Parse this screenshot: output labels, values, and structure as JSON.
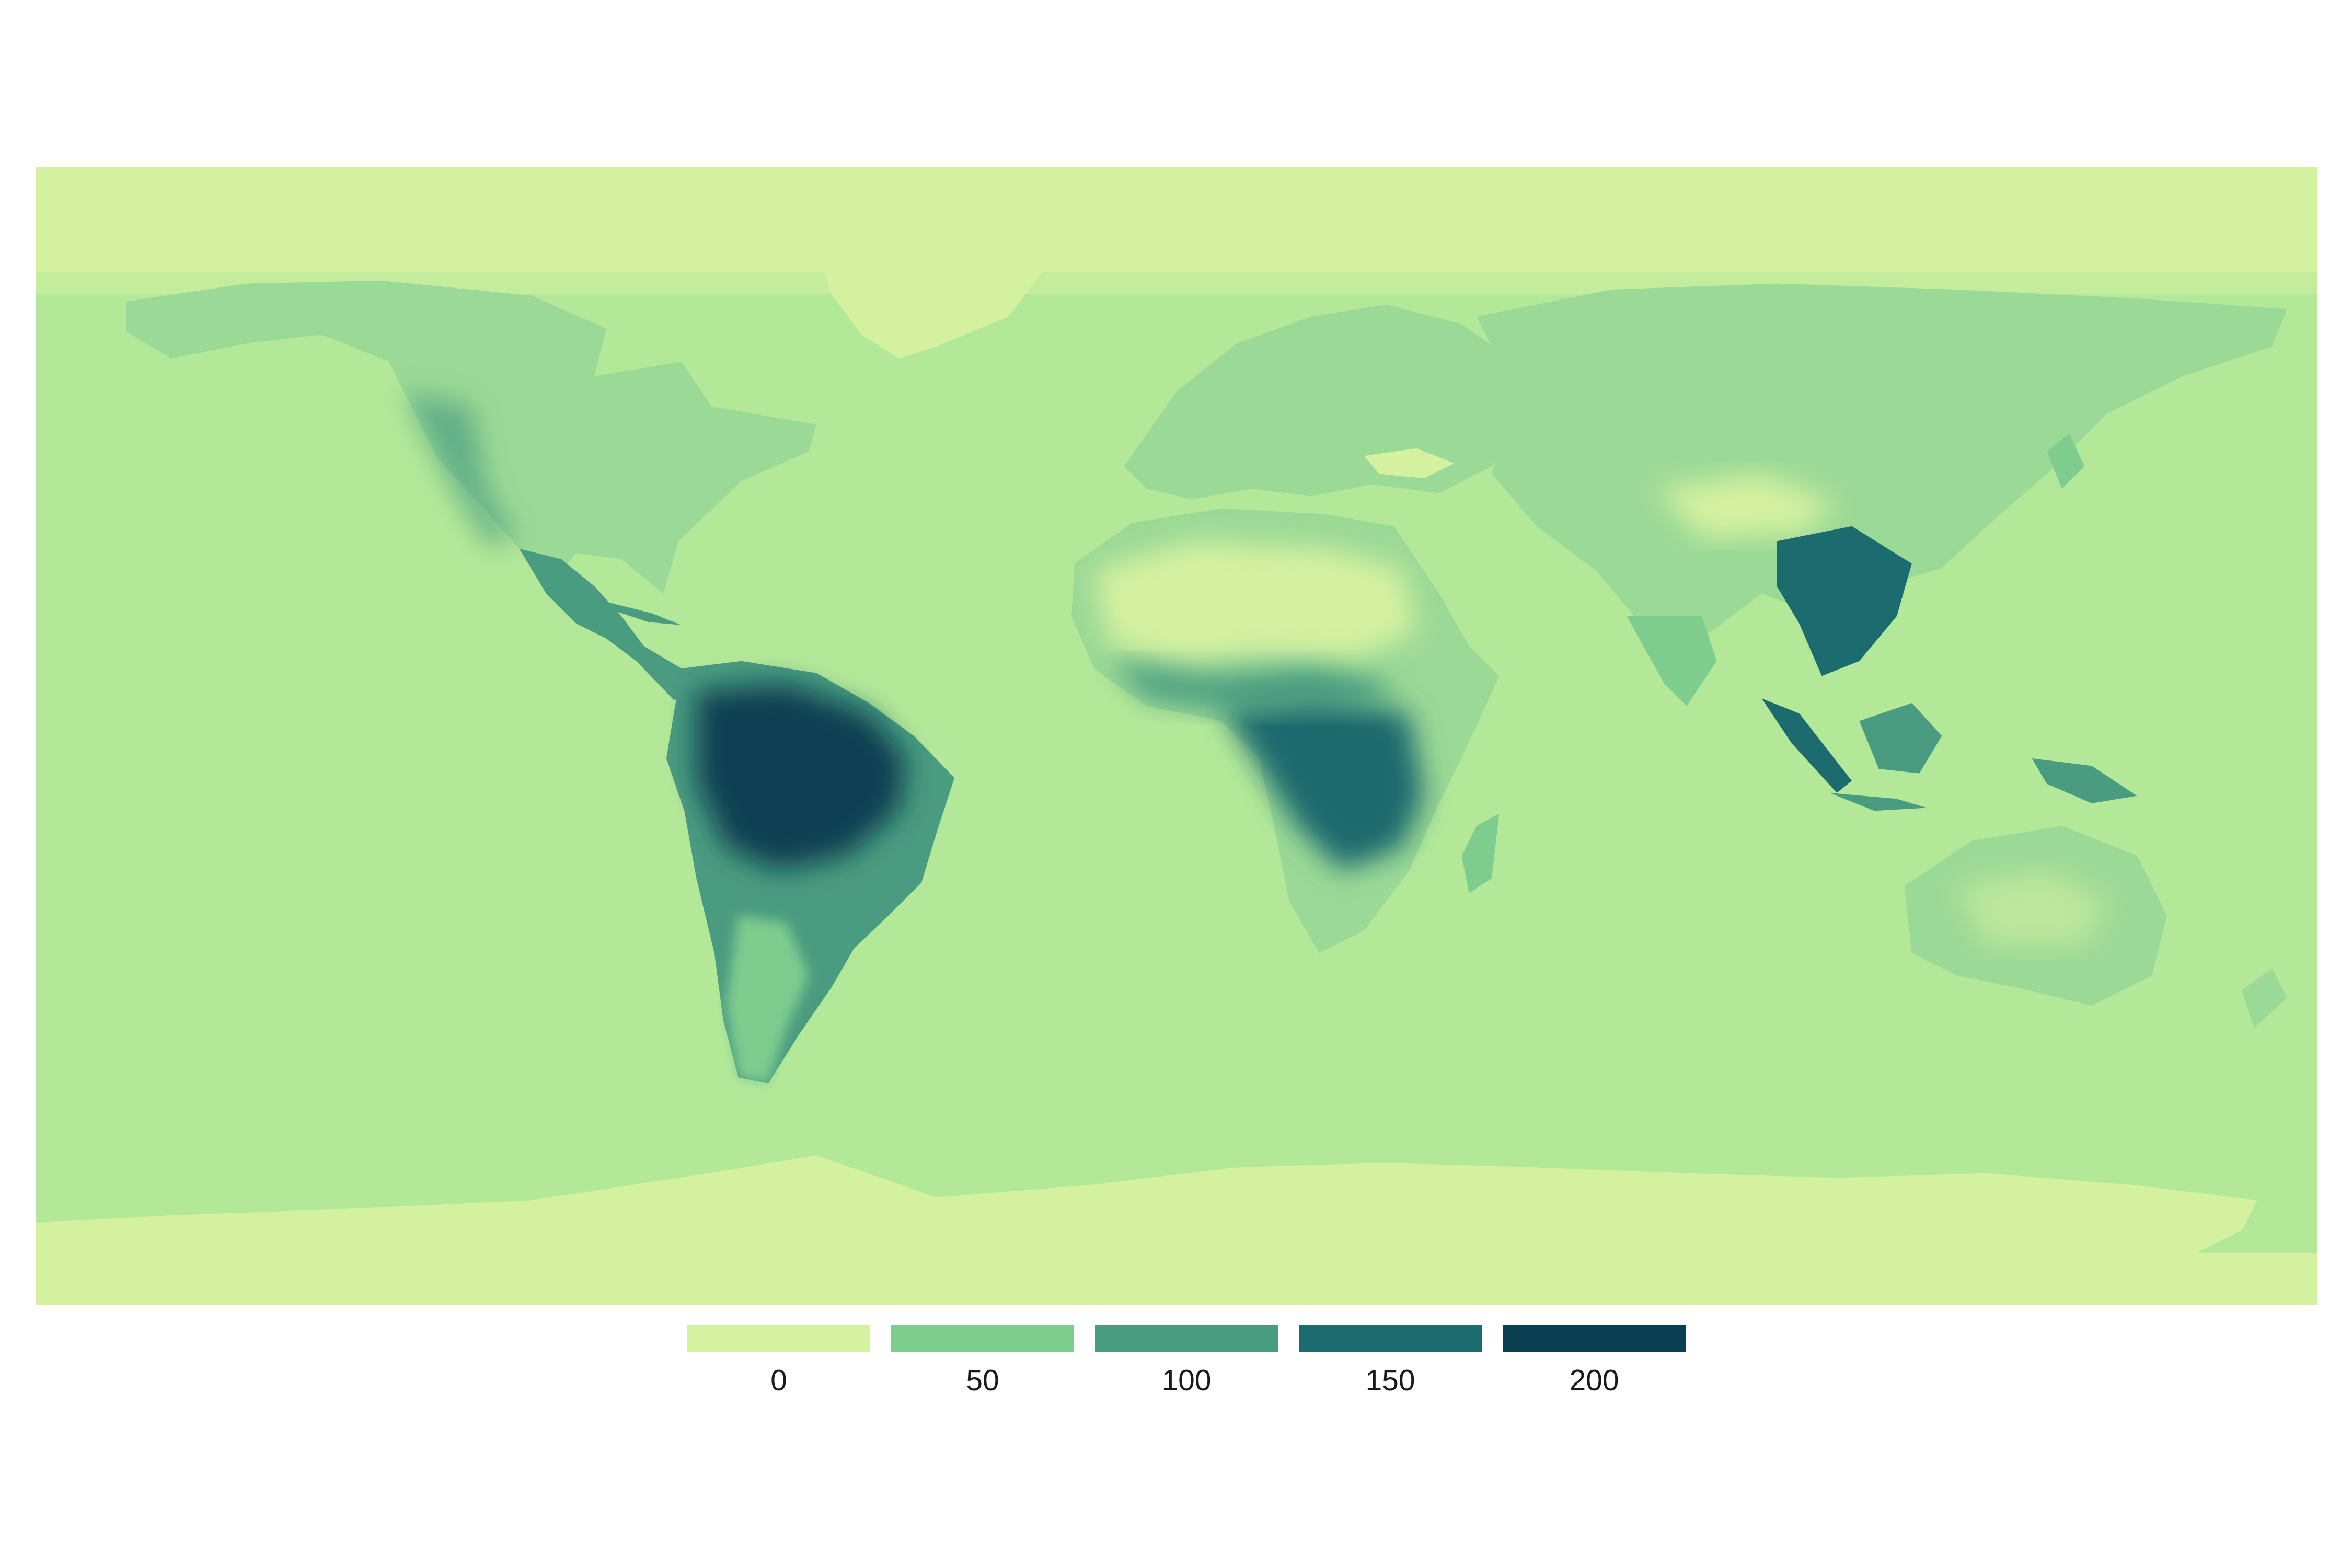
{
  "colors": {
    "ocean": "#b3e899",
    "ice": "#d4f1a0",
    "scale": [
      "#d4f2a0",
      "#7fcc8f",
      "#4a9c80",
      "#1c6b6e",
      "#0a3f52"
    ]
  },
  "legend": {
    "items": [
      {
        "label": "0",
        "color": "#d4f2a0"
      },
      {
        "label": "50",
        "color": "#7fcc8f"
      },
      {
        "label": "100",
        "color": "#4a9c80"
      },
      {
        "label": "150",
        "color": "#1c6b6e"
      },
      {
        "label": "200",
        "color": "#0a3f52"
      }
    ]
  },
  "map": {
    "projection": "equirectangular",
    "regions": [
      {
        "name": "arctic-ice",
        "level": 0
      },
      {
        "name": "antarctica",
        "level": 0
      },
      {
        "name": "greenland",
        "level": 0
      },
      {
        "name": "north-america",
        "level": 70
      },
      {
        "name": "central-america",
        "level": 140
      },
      {
        "name": "south-america-amazon",
        "level": 210
      },
      {
        "name": "south-america-south",
        "level": 50
      },
      {
        "name": "europe",
        "level": 60
      },
      {
        "name": "sahara",
        "level": 10
      },
      {
        "name": "central-africa",
        "level": 150
      },
      {
        "name": "southern-africa",
        "level": 90
      },
      {
        "name": "asia",
        "level": 65
      },
      {
        "name": "southeast-asia",
        "level": 150
      },
      {
        "name": "australia",
        "level": 40
      }
    ]
  }
}
